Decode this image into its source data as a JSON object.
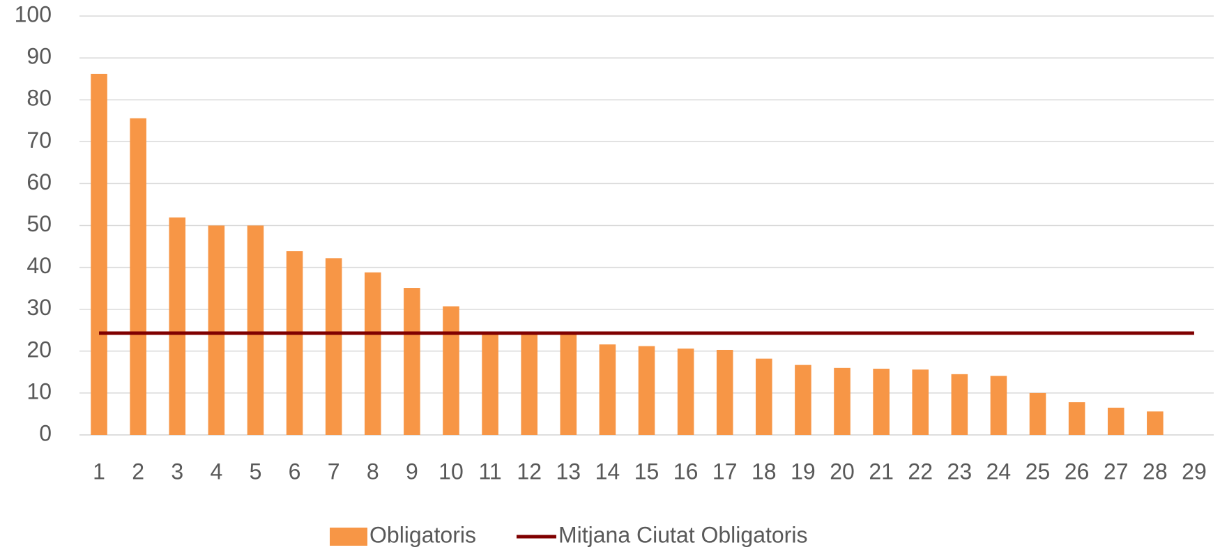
{
  "chart_data": {
    "type": "bar",
    "categories": [
      "1",
      "2",
      "3",
      "4",
      "5",
      "6",
      "7",
      "8",
      "9",
      "10",
      "11",
      "12",
      "13",
      "14",
      "15",
      "16",
      "17",
      "18",
      "19",
      "20",
      "21",
      "22",
      "23",
      "24",
      "25",
      "26",
      "27",
      "28",
      "29"
    ],
    "series": [
      {
        "name": "Obligatoris",
        "type": "bar",
        "color": "#f79646",
        "values": [
          86.2,
          75.6,
          51.9,
          50,
          50,
          43.9,
          42.2,
          38.8,
          35.1,
          30.7,
          24.5,
          24.5,
          24.5,
          21.6,
          21.2,
          20.6,
          20.3,
          18.2,
          16.7,
          16,
          15.8,
          15.6,
          14.5,
          14.1,
          10,
          7.8,
          6.5,
          5.6,
          null
        ]
      },
      {
        "name": "Mitjana Ciutat Obligatoris",
        "type": "line",
        "color": "#7f0000",
        "values": [
          24.3,
          24.3,
          24.3,
          24.3,
          24.3,
          24.3,
          24.3,
          24.3,
          24.3,
          24.3,
          24.3,
          24.3,
          24.3,
          24.3,
          24.3,
          24.3,
          24.3,
          24.3,
          24.3,
          24.3,
          24.3,
          24.3,
          24.3,
          24.3,
          24.3,
          24.3,
          24.3,
          24.3,
          24.3
        ]
      }
    ],
    "ylim": [
      0,
      100
    ],
    "yticks": [
      0,
      10,
      20,
      30,
      40,
      50,
      60,
      70,
      80,
      90,
      100
    ],
    "grid": true,
    "legend": "bottom"
  }
}
